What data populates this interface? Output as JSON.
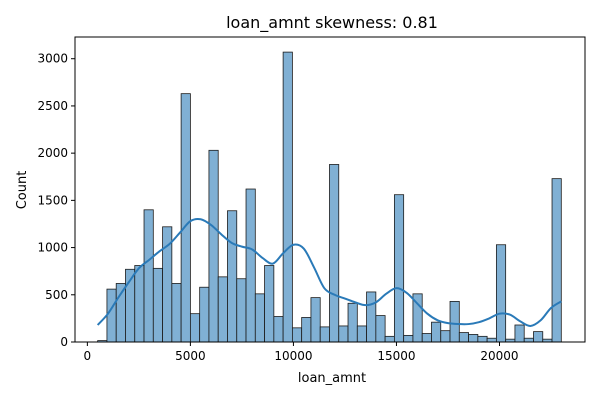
{
  "chart_data": {
    "type": "bar",
    "title": "loan_amnt skewness: 0.81",
    "xlabel": "loan_amnt",
    "ylabel": "Count",
    "xlim": [
      -600,
      24150
    ],
    "ylim": [
      0,
      3230
    ],
    "xticks": [
      0,
      5000,
      10000,
      15000,
      20000
    ],
    "yticks": [
      0,
      500,
      1000,
      1500,
      2000,
      2500,
      3000
    ],
    "grid": false,
    "bar_color": "#80b0d4",
    "edge_color": "#1c1c1c",
    "kde_color": "#2a7ab8",
    "bins": {
      "edges": [
        500,
        950,
        1400,
        1850,
        2300,
        2750,
        3200,
        3650,
        4100,
        4550,
        5000,
        5450,
        5900,
        6350,
        6800,
        7250,
        7700,
        8150,
        8600,
        9050,
        9500,
        9950,
        10400,
        10850,
        11300,
        11750,
        12200,
        12650,
        13100,
        13550,
        14000,
        14450,
        14900,
        15350,
        15800,
        16250,
        16700,
        17150,
        17600,
        18050,
        18500,
        18950,
        19400,
        19850,
        20300,
        20750,
        21200,
        21650,
        22100,
        22550,
        23000
      ],
      "counts": [
        15,
        560,
        620,
        770,
        810,
        1400,
        780,
        1220,
        620,
        2630,
        300,
        580,
        2030,
        690,
        1390,
        670,
        1620,
        510,
        810,
        270,
        3070,
        150,
        260,
        470,
        160,
        1880,
        170,
        410,
        170,
        530,
        280,
        60,
        1560,
        70,
        510,
        90,
        210,
        120,
        430,
        100,
        80,
        60,
        40,
        1030,
        30,
        180,
        40,
        110,
        30,
        1730
      ]
    },
    "kde": {
      "x": [
        500,
        1000,
        1500,
        2000,
        2500,
        3000,
        3500,
        4000,
        4500,
        5000,
        5500,
        6000,
        6500,
        7000,
        7500,
        8000,
        8500,
        9000,
        9500,
        10000,
        10500,
        11000,
        11500,
        12000,
        12500,
        13000,
        13500,
        14000,
        14500,
        15000,
        15500,
        16000,
        16500,
        17000,
        17500,
        18000,
        18500,
        19000,
        19500,
        20000,
        20500,
        21000,
        21500,
        22000,
        22500,
        23000
      ],
      "y": [
        180,
        300,
        470,
        630,
        780,
        870,
        960,
        1040,
        1160,
        1280,
        1300,
        1240,
        1140,
        1050,
        1010,
        980,
        890,
        830,
        940,
        1030,
        990,
        790,
        570,
        500,
        460,
        420,
        390,
        420,
        510,
        570,
        520,
        410,
        300,
        230,
        200,
        190,
        190,
        210,
        250,
        300,
        290,
        220,
        170,
        230,
        360,
        430
      ]
    }
  }
}
